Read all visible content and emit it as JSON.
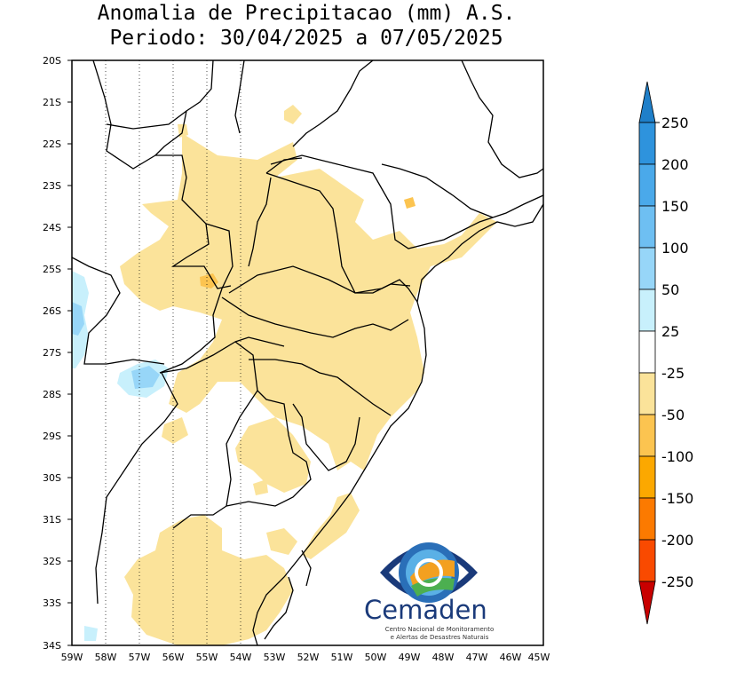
{
  "title": {
    "line1": "Anomalia de Precipitacao (mm) A.S.",
    "line2": "Periodo: 30/04/2025 a 07/05/2025"
  },
  "map": {
    "lon_range": [
      -59,
      -45
    ],
    "lat_range": [
      -34,
      -20
    ],
    "lat_ticks": [
      "20S",
      "21S",
      "22S",
      "23S",
      "24S",
      "25S",
      "26S",
      "27S",
      "28S",
      "29S",
      "30S",
      "31S",
      "32S",
      "33S",
      "34S"
    ],
    "lon_ticks": [
      "59W",
      "58W",
      "57W",
      "56W",
      "55W",
      "54W",
      "53W",
      "52W",
      "51W",
      "50W",
      "49W",
      "48W",
      "47W",
      "46W",
      "45W"
    ]
  },
  "colorbar": {
    "labels": [
      "250",
      "200",
      "150",
      "100",
      "50",
      "25",
      "-25",
      "-50",
      "-100",
      "-150",
      "-200",
      "-250"
    ],
    "colors": {
      "p250": "#1f7fc9",
      "p200": "#2e93dd",
      "p150": "#4aa9ea",
      "p100": "#6ebff2",
      "p50": "#97d6f8",
      "p25": "#c8f0fc",
      "neutral": "#ffffff",
      "n25": "#fbe39a",
      "n50": "#fcc450",
      "n100": "#fca800",
      "n150": "#fc7a00",
      "n200": "#f94a00",
      "n250": "#c80000"
    }
  },
  "logo": {
    "name": "Cemaden",
    "subtitle_line1": "Centro Nacional de Monitoramento",
    "subtitle_line2": "e Alertas de Desastres Naturais"
  }
}
